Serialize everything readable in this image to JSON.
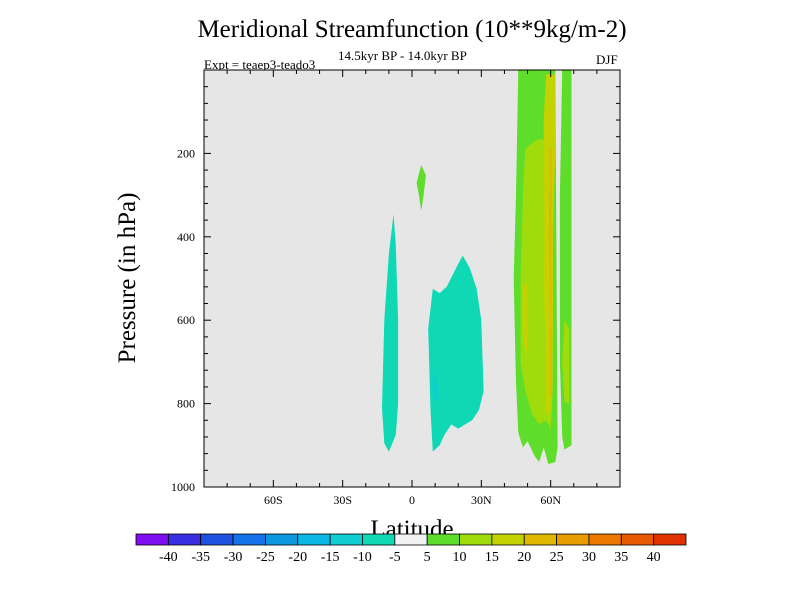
{
  "header": {
    "title": "Meridional Streamfunction (10**9kg/m-2)",
    "subtitle": "14.5kyr BP - 14.0kyr BP",
    "expt": "Expt = teaep3-teado3",
    "season": "DJF"
  },
  "chart_data": {
    "type": "contour",
    "title": "Meridional Streamfunction (10**9kg/m-2)",
    "subtitle": "14.5kyr BP - 14.0kyr BP",
    "xlabel": "Latitude",
    "ylabel": "Pressure (in hPa)",
    "xlim": [
      -90,
      90
    ],
    "ylim": [
      0,
      1000
    ],
    "y_inverted": true,
    "x_ticks": [
      {
        "value": -60,
        "label": "60S"
      },
      {
        "value": -30,
        "label": "30S"
      },
      {
        "value": 0,
        "label": "0"
      },
      {
        "value": 30,
        "label": "30N"
      },
      {
        "value": 60,
        "label": "60N"
      }
    ],
    "y_ticks": [
      {
        "value": 200,
        "label": "200"
      },
      {
        "value": 400,
        "label": "400"
      },
      {
        "value": 600,
        "label": "600"
      },
      {
        "value": 800,
        "label": "800"
      },
      {
        "value": 1000,
        "label": "1000"
      }
    ],
    "background_color": "#e6e6e6",
    "colorbar": {
      "labels": [
        "-40",
        "-35",
        "-30",
        "-25",
        "-20",
        "-15",
        "-10",
        "-5",
        "5",
        "10",
        "15",
        "20",
        "25",
        "30",
        "35",
        "40"
      ],
      "colors": [
        "#7f0ef0",
        "#3a2fe0",
        "#1f52de",
        "#1473e8",
        "#0b97e0",
        "#0bb7e4",
        "#10cdd2",
        "#0ed9b4",
        "#f2f2f2",
        "#5edd2a",
        "#a0dc0c",
        "#c4d200",
        "#e0b800",
        "#e89c00",
        "#ec7800",
        "#e85a00",
        "#e03200"
      ]
    },
    "regions": [
      {
        "value": 7.5,
        "color": "#5edd2a",
        "points": [
          [
            2,
            270
          ],
          [
            4,
            228
          ],
          [
            6,
            252
          ],
          [
            5,
            300
          ],
          [
            4,
            338
          ],
          [
            3,
            300
          ]
        ]
      },
      {
        "value": -7.5,
        "color": "#0ed9b4",
        "points": [
          [
            -6,
            800
          ],
          [
            -6,
            600
          ],
          [
            -7,
            420
          ],
          [
            -8,
            346
          ],
          [
            -10,
            440
          ],
          [
            -12,
            600
          ],
          [
            -13,
            810
          ],
          [
            -12,
            895
          ],
          [
            -10,
            915
          ],
          [
            -7,
            875
          ]
        ]
      },
      {
        "value": -7.5,
        "color": "#0ed9b4",
        "points": [
          [
            8,
            815
          ],
          [
            7,
            620
          ],
          [
            9,
            525
          ],
          [
            12,
            535
          ],
          [
            15,
            520
          ],
          [
            20,
            465
          ],
          [
            22,
            445
          ],
          [
            25,
            475
          ],
          [
            28,
            525
          ],
          [
            30,
            600
          ],
          [
            31,
            770
          ],
          [
            29,
            815
          ],
          [
            26,
            840
          ],
          [
            23,
            850
          ],
          [
            20,
            860
          ],
          [
            17,
            850
          ],
          [
            14,
            875
          ],
          [
            12,
            900
          ],
          [
            9,
            915
          ]
        ]
      },
      {
        "value": -12.5,
        "color": "#10cdd2",
        "points": [
          [
            10,
            715
          ],
          [
            11,
            760
          ],
          [
            11,
            790
          ],
          [
            10,
            800
          ],
          [
            9,
            770
          ],
          [
            9,
            735
          ]
        ]
      },
      {
        "value": 7.5,
        "color": "#5edd2a",
        "points": [
          [
            46,
            0
          ],
          [
            62,
            0
          ],
          [
            63,
            905
          ],
          [
            62,
            940
          ],
          [
            59,
            945
          ],
          [
            57,
            905
          ],
          [
            55,
            940
          ],
          [
            53,
            925
          ],
          [
            50,
            890
          ],
          [
            48,
            905
          ],
          [
            46,
            870
          ],
          [
            45,
            750
          ],
          [
            44,
            500
          ],
          [
            45,
            300
          ]
        ]
      },
      {
        "value": 7.5,
        "color": "#5edd2a",
        "points": [
          [
            65,
            0
          ],
          [
            69,
            0
          ],
          [
            69,
            900
          ],
          [
            66,
            910
          ],
          [
            65,
            880
          ],
          [
            64,
            700
          ],
          [
            64,
            300
          ]
        ]
      },
      {
        "value": 12.5,
        "color": "#a0dc0c",
        "points": [
          [
            49,
            190
          ],
          [
            52,
            175
          ],
          [
            55,
            165
          ],
          [
            58,
            170
          ],
          [
            61,
            165
          ],
          [
            61,
            300
          ],
          [
            61,
            560
          ],
          [
            61,
            760
          ],
          [
            60,
            860
          ],
          [
            58,
            840
          ],
          [
            55,
            850
          ],
          [
            52,
            825
          ],
          [
            49,
            770
          ],
          [
            47,
            700
          ],
          [
            47,
            500
          ],
          [
            48,
            300
          ]
        ]
      },
      {
        "value": 12.5,
        "color": "#a0dc0c",
        "points": [
          [
            66,
            600
          ],
          [
            68,
            620
          ],
          [
            68,
            800
          ],
          [
            66,
            795
          ],
          [
            65,
            700
          ]
        ]
      },
      {
        "value": 17.5,
        "color": "#c4d200",
        "points": [
          [
            48,
            520
          ],
          [
            50,
            510
          ],
          [
            50,
            665
          ],
          [
            49,
            680
          ],
          [
            48,
            620
          ]
        ]
      },
      {
        "value": 17.5,
        "color": "#c4d200",
        "points": [
          [
            58,
            10
          ],
          [
            62,
            10
          ],
          [
            62,
            200
          ],
          [
            61,
            400
          ],
          [
            61,
            600
          ],
          [
            60,
            820
          ],
          [
            58,
            825
          ],
          [
            58,
            700
          ],
          [
            57,
            500
          ],
          [
            57,
            300
          ],
          [
            57,
            120
          ]
        ]
      },
      {
        "value": 22.5,
        "color": "#e0b800",
        "points": [
          [
            59.5,
            190
          ],
          [
            60.5,
            190
          ],
          [
            60.3,
            580
          ],
          [
            60.5,
            770
          ],
          [
            59.5,
            790
          ],
          [
            59.6,
            600
          ],
          [
            59.2,
            400
          ]
        ]
      }
    ]
  }
}
